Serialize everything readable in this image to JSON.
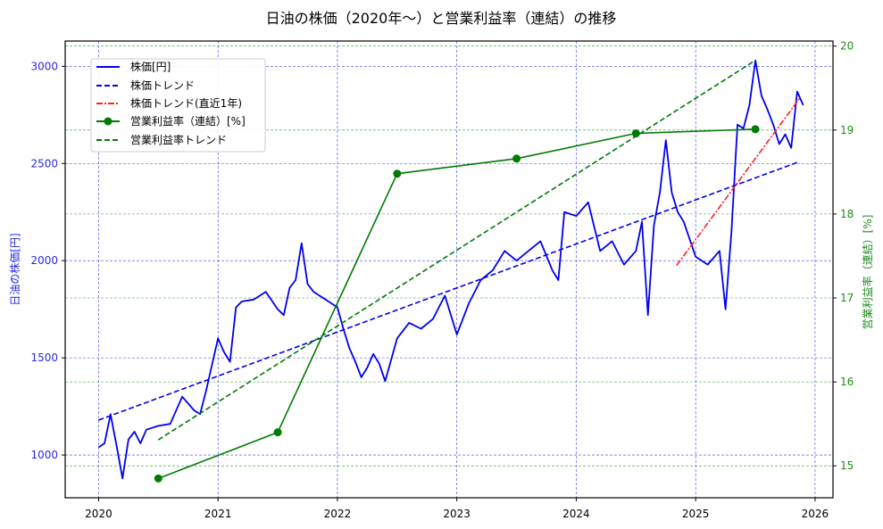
{
  "chart_data": {
    "type": "line",
    "title": "日油の株価（2020年〜）と営業利益率（連結）の推移",
    "xlabel": "",
    "ylabel": "日油の株価[円]",
    "ylabel_right": "営業利益率（連結）[%]",
    "xlim": [
      2019.72,
      2026.15
    ],
    "ylim": [
      780,
      3130
    ],
    "ylim_right": [
      14.62,
      20.06
    ],
    "x_ticks": [
      "2020",
      "2021",
      "2022",
      "2023",
      "2024",
      "2025",
      "2026"
    ],
    "y_ticks_left": [
      "1000",
      "1500",
      "2000",
      "2500",
      "3000"
    ],
    "y_ticks_right": [
      "15",
      "16",
      "17",
      "18",
      "19",
      "20"
    ],
    "grid": true,
    "legend_position": "upper left",
    "series": [
      {
        "name": "株価[円]",
        "axis": "left",
        "style": "solid",
        "color": "#0000ee",
        "x": [
          2020.0,
          2020.05,
          2020.1,
          2020.15,
          2020.2,
          2020.25,
          2020.3,
          2020.35,
          2020.4,
          2020.5,
          2020.6,
          2020.7,
          2020.8,
          2020.85,
          2020.9,
          2021.0,
          2021.05,
          2021.1,
          2021.15,
          2021.2,
          2021.3,
          2021.4,
          2021.5,
          2021.55,
          2021.6,
          2021.65,
          2021.7,
          2021.75,
          2021.8,
          2021.9,
          2022.0,
          2022.05,
          2022.1,
          2022.15,
          2022.2,
          2022.25,
          2022.3,
          2022.35,
          2022.4,
          2022.5,
          2022.6,
          2022.7,
          2022.8,
          2022.9,
          2023.0,
          2023.05,
          2023.1,
          2023.2,
          2023.3,
          2023.4,
          2023.5,
          2023.6,
          2023.7,
          2023.8,
          2023.85,
          2023.9,
          2024.0,
          2024.1,
          2024.2,
          2024.3,
          2024.4,
          2024.5,
          2024.55,
          2024.6,
          2024.65,
          2024.7,
          2024.75,
          2024.8,
          2024.85,
          2024.9,
          2025.0,
          2025.1,
          2025.2,
          2025.25,
          2025.3,
          2025.35,
          2025.4,
          2025.45,
          2025.5,
          2025.55,
          2025.6,
          2025.65,
          2025.7,
          2025.75,
          2025.8,
          2025.85,
          2025.9
        ],
        "values": [
          1040,
          1060,
          1210,
          1050,
          880,
          1080,
          1120,
          1060,
          1130,
          1150,
          1160,
          1300,
          1230,
          1210,
          1330,
          1600,
          1530,
          1480,
          1760,
          1790,
          1800,
          1840,
          1750,
          1720,
          1860,
          1900,
          2090,
          1880,
          1840,
          1800,
          1760,
          1650,
          1550,
          1480,
          1400,
          1450,
          1520,
          1470,
          1380,
          1600,
          1680,
          1650,
          1700,
          1820,
          1620,
          1700,
          1780,
          1900,
          1950,
          2050,
          2000,
          2050,
          2100,
          1950,
          1900,
          2250,
          2230,
          2300,
          2050,
          2100,
          1980,
          2050,
          2200,
          1720,
          2180,
          2350,
          2620,
          2350,
          2250,
          2200,
          2020,
          1980,
          2050,
          1750,
          2150,
          2700,
          2680,
          2800,
          3030,
          2850,
          2780,
          2700,
          2600,
          2650,
          2580,
          2870,
          2800
        ]
      },
      {
        "name": "株価トレンド",
        "axis": "left",
        "style": "dashed",
        "color": "#0000ee",
        "x": [
          2020.0,
          2025.87
        ],
        "values": [
          1180,
          2510
        ]
      },
      {
        "name": "株価トレンド(直近1年)",
        "axis": "left",
        "style": "dashdot",
        "color": "#ff2020",
        "x": [
          2024.84,
          2025.87
        ],
        "values": [
          1975,
          2835
        ]
      },
      {
        "name": "営業利益率（連結）[%]",
        "axis": "right",
        "style": "solid-marker",
        "color": "#007a00",
        "x": [
          2020.5,
          2021.5,
          2022.5,
          2023.5,
          2024.5,
          2025.5
        ],
        "values": [
          14.85,
          15.4,
          18.48,
          18.66,
          18.96,
          19.01
        ]
      },
      {
        "name": "営業利益率トレンド",
        "axis": "right",
        "style": "dashed",
        "color": "#007a00",
        "x": [
          2020.5,
          2025.5
        ],
        "values": [
          15.31,
          19.83
        ]
      }
    ]
  },
  "legend": {
    "items": [
      {
        "label": "株価[円]"
      },
      {
        "label": "株価トレンド"
      },
      {
        "label": "株価トレンド(直近1年)"
      },
      {
        "label": "営業利益率（連結）[%]"
      },
      {
        "label": "営業利益率トレンド"
      }
    ]
  }
}
